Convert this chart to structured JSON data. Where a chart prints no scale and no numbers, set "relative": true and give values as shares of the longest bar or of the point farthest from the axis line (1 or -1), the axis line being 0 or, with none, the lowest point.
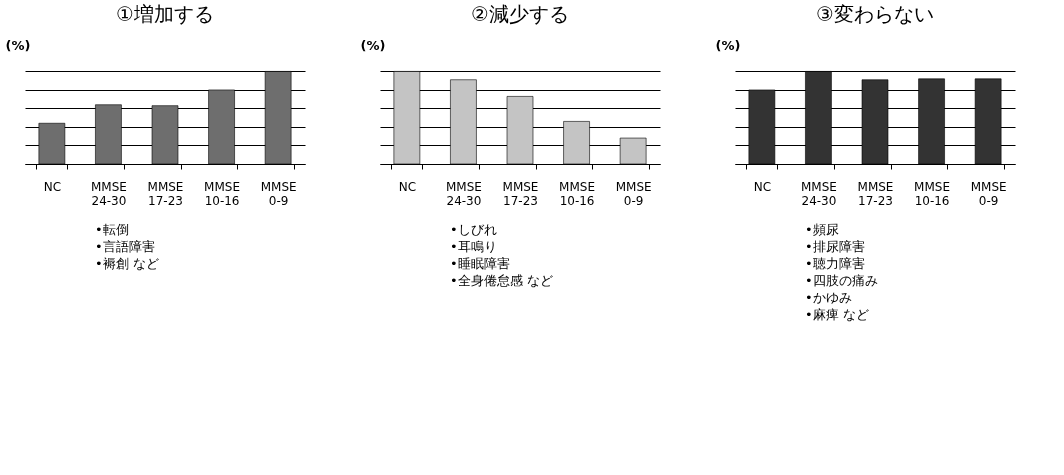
{
  "chart_data": [
    {
      "type": "bar",
      "title": "①増加する",
      "ylabel": "(%)",
      "relative": true,
      "grid": "y",
      "legend": false,
      "categories": [
        "NC",
        "MMSE 24-30",
        "MMSE 17-23",
        "MMSE 10-16",
        "MMSE 0-9"
      ],
      "series": [
        {
          "color": "#6e6e6e",
          "values": [
            0.44,
            0.64,
            0.63,
            0.8,
            1
          ]
        }
      ],
      "annotations": [
        "•転倒",
        "•言語障害",
        "•褥創  など"
      ]
    },
    {
      "type": "bar",
      "title": "②減少する",
      "ylabel": "(%)",
      "relative": true,
      "grid": "y",
      "legend": false,
      "categories": [
        "NC",
        "MMSE 24-30",
        "MMSE 17-23",
        "MMSE 10-16",
        "MMSE 0-9"
      ],
      "series": [
        {
          "color": "#c4c4c4",
          "values": [
            1,
            0.91,
            0.73,
            0.46,
            0.28
          ]
        }
      ],
      "annotations": [
        "•しびれ",
        "•耳鳴り",
        "•睡眠障害",
        "•全身倦怠感  など"
      ]
    },
    {
      "type": "bar",
      "title": "③変わらない",
      "ylabel": "(%)",
      "relative": true,
      "grid": "y",
      "legend": false,
      "categories": [
        "NC",
        "MMSE 24-30",
        "MMSE 17-23",
        "MMSE 10-16",
        "MMSE 0-9"
      ],
      "series": [
        {
          "color": "#333333",
          "values": [
            0.8,
            1,
            0.91,
            0.92,
            0.92
          ]
        }
      ],
      "annotations": [
        "•頻尿",
        "•排尿障害",
        "•聴力障害",
        "•四肢の痛み",
        "•かゆみ",
        "•麻痺  など"
      ]
    }
  ]
}
